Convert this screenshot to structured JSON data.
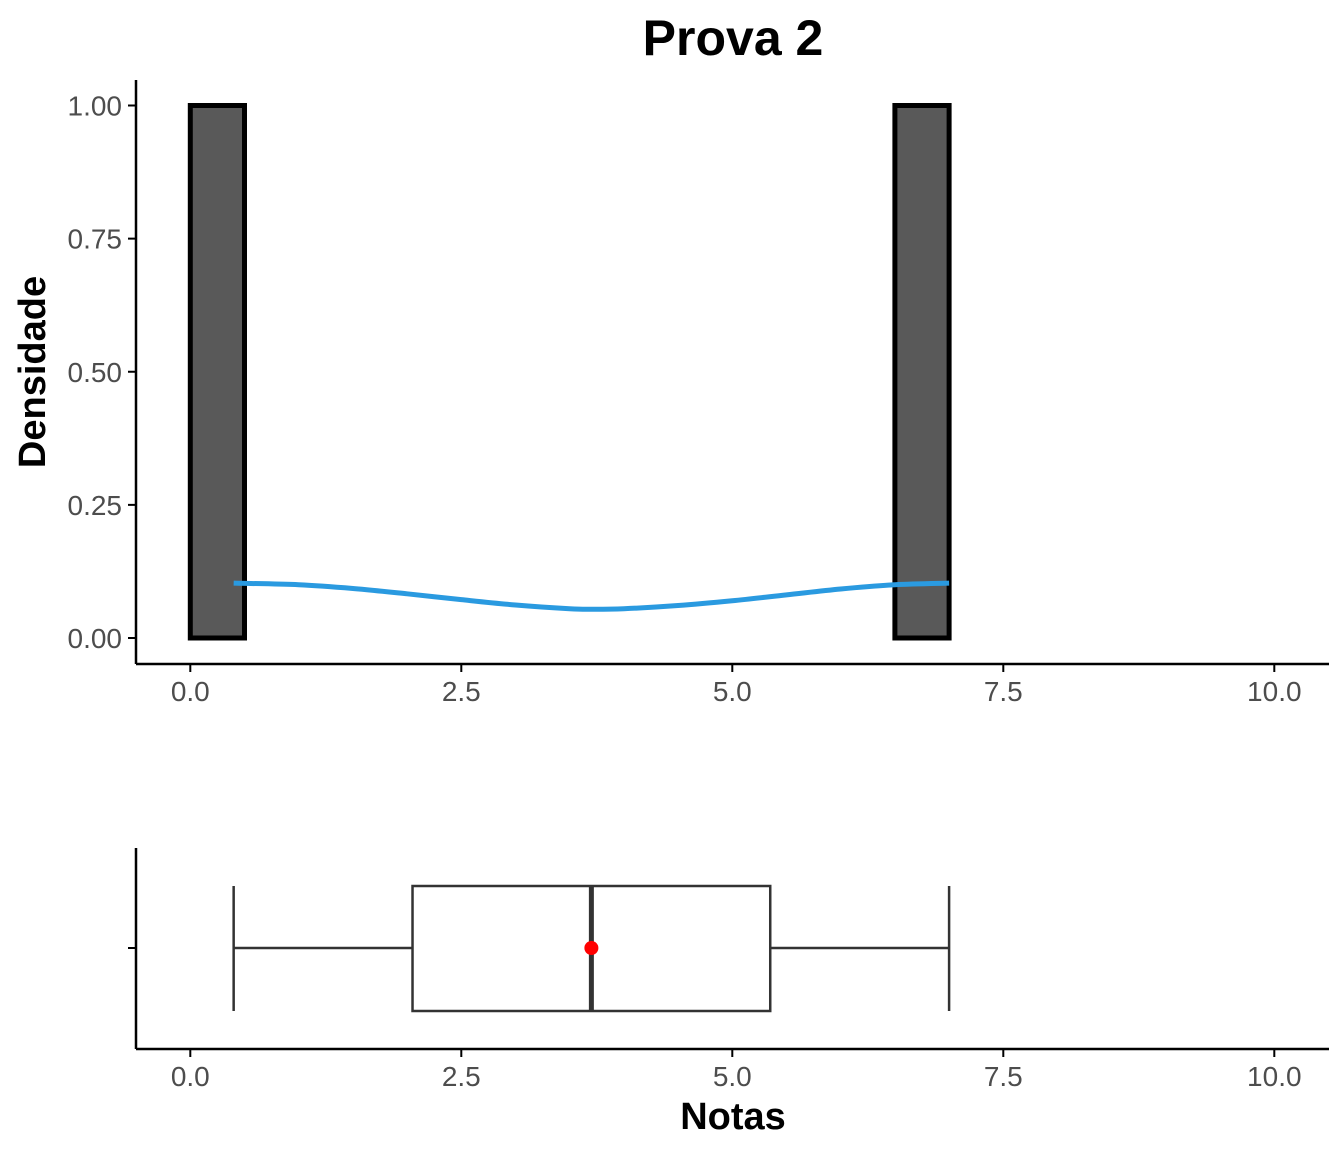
{
  "chart_data": [
    {
      "type": "histogram",
      "title": "Prova 2",
      "xlabel": "",
      "ylabel": "Densidade",
      "xlim": [
        -0.5,
        10.5
      ],
      "ylim": [
        -0.05,
        1.05
      ],
      "grid": false,
      "x_ticks": [
        "0.0",
        "2.5",
        "5.0",
        "7.5",
        "10.0"
      ],
      "y_ticks": [
        "0.00",
        "0.25",
        "0.50",
        "0.75",
        "1.00"
      ],
      "bin_width": 0.5,
      "bins": [
        {
          "x0": 0.0,
          "x1": 0.5,
          "density": 1.0
        },
        {
          "x0": 0.5,
          "x1": 1.0,
          "density": 0.0
        },
        {
          "x0": 1.0,
          "x1": 1.5,
          "density": 0.0
        },
        {
          "x0": 1.5,
          "x1": 2.0,
          "density": 0.0
        },
        {
          "x0": 2.0,
          "x1": 2.5,
          "density": 0.0
        },
        {
          "x0": 2.5,
          "x1": 3.0,
          "density": 0.0
        },
        {
          "x0": 3.0,
          "x1": 3.5,
          "density": 0.0
        },
        {
          "x0": 3.5,
          "x1": 4.0,
          "density": 0.0
        },
        {
          "x0": 4.0,
          "x1": 4.5,
          "density": 0.0
        },
        {
          "x0": 4.5,
          "x1": 5.0,
          "density": 0.0
        },
        {
          "x0": 5.0,
          "x1": 5.5,
          "density": 0.0
        },
        {
          "x0": 5.5,
          "x1": 6.0,
          "density": 0.0
        },
        {
          "x0": 6.0,
          "x1": 6.5,
          "density": 0.0
        },
        {
          "x0": 6.5,
          "x1": 7.0,
          "density": 1.0
        },
        {
          "x0": 7.0,
          "x1": 7.5,
          "density": 0.0
        },
        {
          "x0": 7.5,
          "x1": 8.0,
          "density": 0.0
        },
        {
          "x0": 8.0,
          "x1": 8.5,
          "density": 0.0
        },
        {
          "x0": 8.5,
          "x1": 9.0,
          "density": 0.0
        },
        {
          "x0": 9.0,
          "x1": 9.5,
          "density": 0.0
        },
        {
          "x0": 9.5,
          "x1": 10.0,
          "density": 0.0
        }
      ],
      "density_curve": {
        "x": [
          0.4,
          1.0,
          1.5,
          2.0,
          2.5,
          3.0,
          3.5,
          3.7,
          4.0,
          4.5,
          5.0,
          5.5,
          6.0,
          6.5,
          7.0
        ],
        "y": [
          0.103,
          0.1,
          0.093,
          0.083,
          0.072,
          0.062,
          0.055,
          0.054,
          0.055,
          0.061,
          0.07,
          0.081,
          0.092,
          0.1,
          0.103
        ]
      },
      "colors": {
        "bar_fill": "#595959",
        "bar_stroke": "#000000",
        "curve": "#2a9ae0"
      }
    },
    {
      "type": "boxplot",
      "xlabel": "Notas",
      "xlim": [
        -0.5,
        10.5
      ],
      "x_ticks": [
        "0.0",
        "2.5",
        "5.0",
        "7.5",
        "10.0"
      ],
      "whisker_low": 0.4,
      "q1": 2.05,
      "median": 3.7,
      "q3": 5.35,
      "whisker_high": 7.0,
      "mean": 3.7,
      "colors": {
        "box_stroke": "#333333",
        "mean_point": "#ff0000"
      }
    }
  ]
}
